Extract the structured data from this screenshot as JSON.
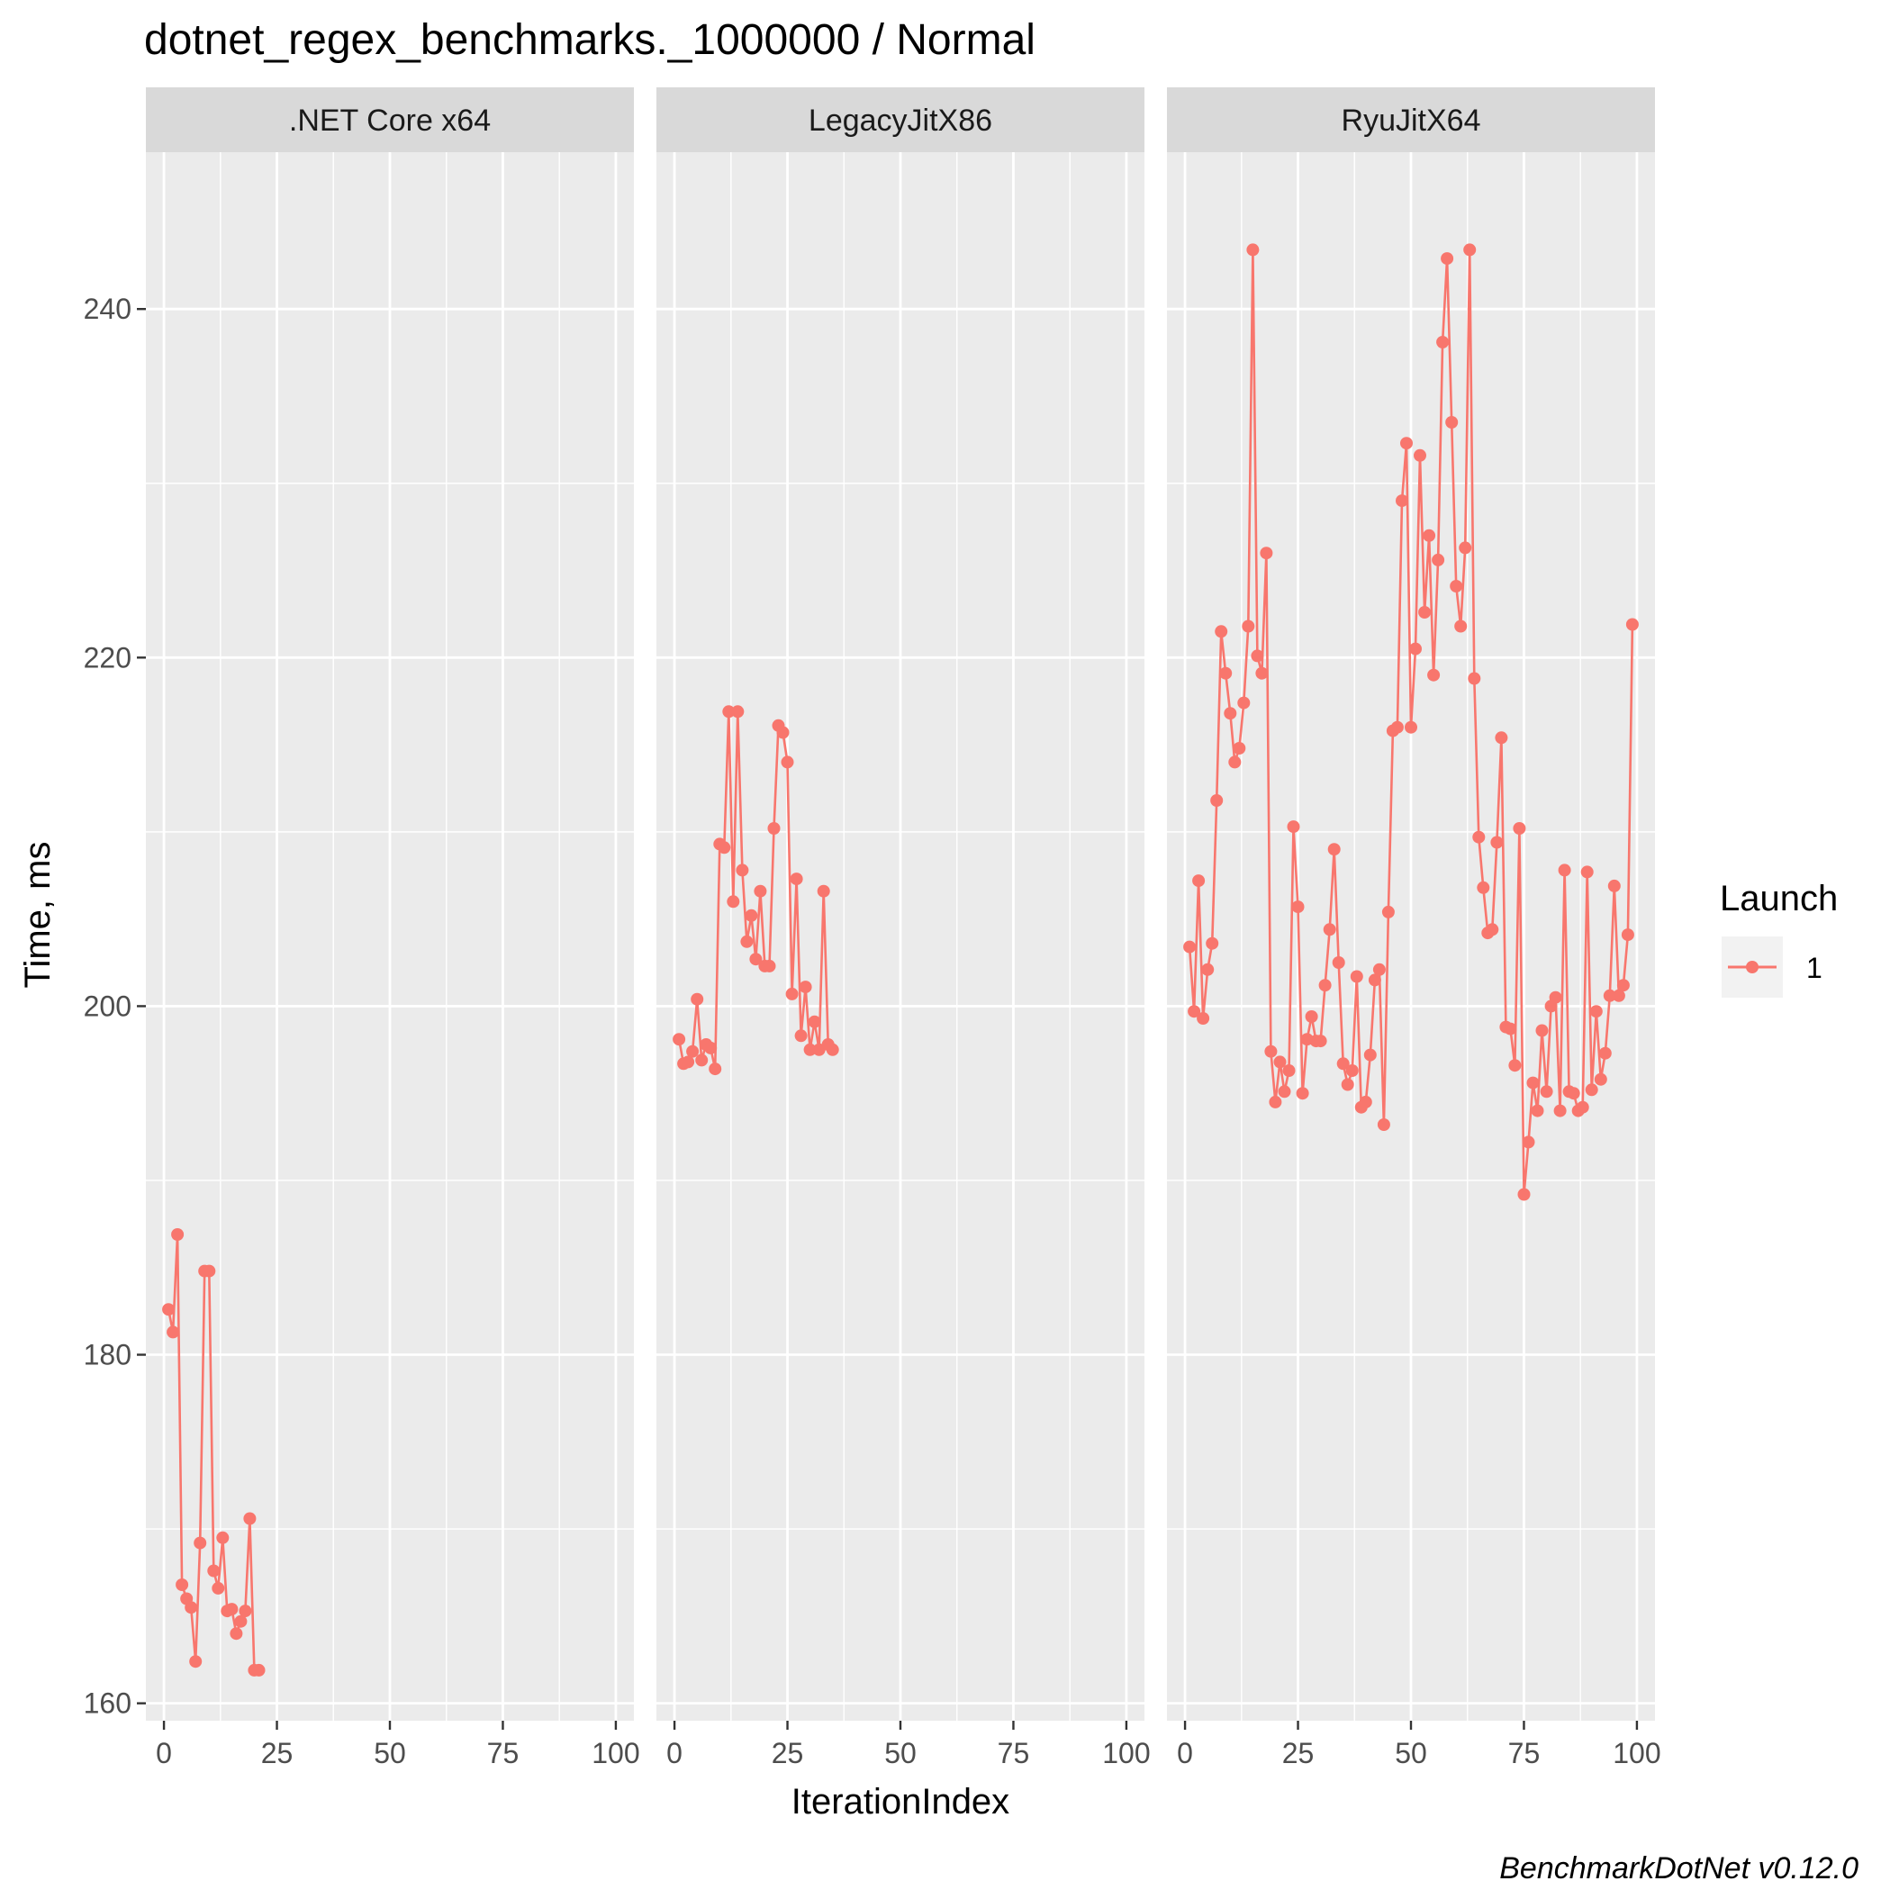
{
  "chart_data": {
    "type": "line",
    "title": "dotnet_regex_benchmarks._1000000 / Normal",
    "xlabel": "IterationIndex",
    "ylabel": "Time, ms",
    "xlim": [
      -4,
      104
    ],
    "ylim": [
      159,
      249
    ],
    "x_ticks": [
      0,
      25,
      50,
      75,
      100
    ],
    "y_ticks": [
      160,
      180,
      200,
      220,
      240
    ],
    "grid": true,
    "legend": {
      "title": "Launch",
      "entries": [
        "1"
      ],
      "position": "right"
    },
    "colors": {
      "series": "#f8766d",
      "panel": "#ebebeb",
      "strip": "#d9d9d9",
      "grid": "#ffffff"
    },
    "caption": "BenchmarkDotNet v0.12.0",
    "panels": [
      {
        "strip": ".NET Core x64",
        "series": [
          {
            "name": "1",
            "x": [
              1,
              2,
              3,
              4,
              5,
              6,
              7,
              8,
              9,
              10,
              11,
              12,
              13,
              14,
              15,
              16,
              17,
              18,
              19,
              20,
              21
            ],
            "y": [
              182.6,
              181.3,
              186.9,
              166.8,
              166.0,
              165.5,
              162.4,
              169.2,
              184.8,
              184.8,
              167.6,
              166.6,
              169.5,
              165.3,
              165.4,
              164.0,
              164.7,
              165.3,
              170.6,
              161.9,
              161.9
            ]
          }
        ]
      },
      {
        "strip": "LegacyJitX86",
        "series": [
          {
            "name": "1",
            "x": [
              1,
              2,
              3,
              4,
              5,
              6,
              7,
              8,
              9,
              10,
              11,
              12,
              13,
              14,
              15,
              16,
              17,
              18,
              19,
              20,
              21,
              22,
              23,
              24,
              25,
              26,
              27,
              28,
              29,
              30,
              31,
              32,
              33,
              34,
              35
            ],
            "y": [
              198.1,
              196.7,
              196.8,
              197.4,
              200.4,
              196.9,
              197.8,
              197.6,
              196.4,
              209.3,
              209.1,
              216.9,
              206.0,
              216.9,
              207.8,
              203.7,
              205.2,
              202.7,
              206.6,
              202.3,
              202.3,
              210.2,
              216.1,
              215.7,
              214.0,
              200.7,
              207.3,
              198.3,
              201.1,
              197.5,
              199.1,
              197.5,
              206.6,
              197.8,
              197.5
            ]
          }
        ]
      },
      {
        "strip": "RyuJitX64",
        "series": [
          {
            "name": "1",
            "x": [
              1,
              2,
              3,
              4,
              5,
              6,
              7,
              8,
              9,
              10,
              11,
              12,
              13,
              14,
              15,
              16,
              17,
              18,
              19,
              20,
              21,
              22,
              23,
              24,
              25,
              26,
              27,
              28,
              29,
              30,
              31,
              32,
              33,
              34,
              35,
              36,
              37,
              38,
              39,
              40,
              41,
              42,
              43,
              44,
              45,
              46,
              47,
              48,
              49,
              50,
              51,
              52,
              53,
              54,
              55,
              56,
              57,
              58,
              59,
              60,
              61,
              62,
              63,
              64,
              65,
              66,
              67,
              68,
              69,
              70,
              71,
              72,
              73,
              74,
              75,
              76,
              77,
              78,
              79,
              80,
              81,
              82,
              83,
              84,
              85,
              86,
              87,
              88,
              89,
              90,
              91,
              92,
              93,
              94,
              95,
              96,
              97,
              98,
              99
            ],
            "y": [
              203.4,
              199.7,
              207.2,
              199.3,
              202.1,
              203.6,
              211.8,
              221.5,
              219.1,
              216.8,
              214.0,
              214.8,
              217.4,
              221.8,
              243.4,
              220.1,
              219.1,
              226.0,
              197.4,
              194.5,
              196.8,
              195.1,
              196.3,
              210.3,
              205.7,
              195.0,
              198.1,
              199.4,
              198.0,
              198.0,
              201.2,
              204.4,
              209.0,
              202.5,
              196.7,
              195.5,
              196.3,
              201.7,
              194.2,
              194.5,
              197.2,
              201.5,
              202.1,
              193.2,
              205.4,
              215.8,
              216.0,
              229.0,
              232.3,
              216.0,
              220.5,
              231.6,
              222.6,
              227.0,
              219.0,
              225.6,
              238.1,
              242.9,
              233.5,
              224.1,
              221.8,
              226.3,
              243.4,
              218.8,
              209.7,
              206.8,
              204.2,
              204.4,
              209.4,
              215.4,
              198.8,
              198.7,
              196.6,
              210.2,
              189.2,
              192.2,
              195.6,
              194.0,
              198.6,
              195.1,
              200.0,
              200.5,
              194.0,
              207.8,
              195.1,
              195.0,
              194.0,
              194.2,
              207.7,
              195.2,
              199.7,
              195.8,
              197.3,
              200.6,
              206.9,
              200.6,
              201.2,
              204.1,
              221.9
            ]
          }
        ]
      }
    ]
  }
}
